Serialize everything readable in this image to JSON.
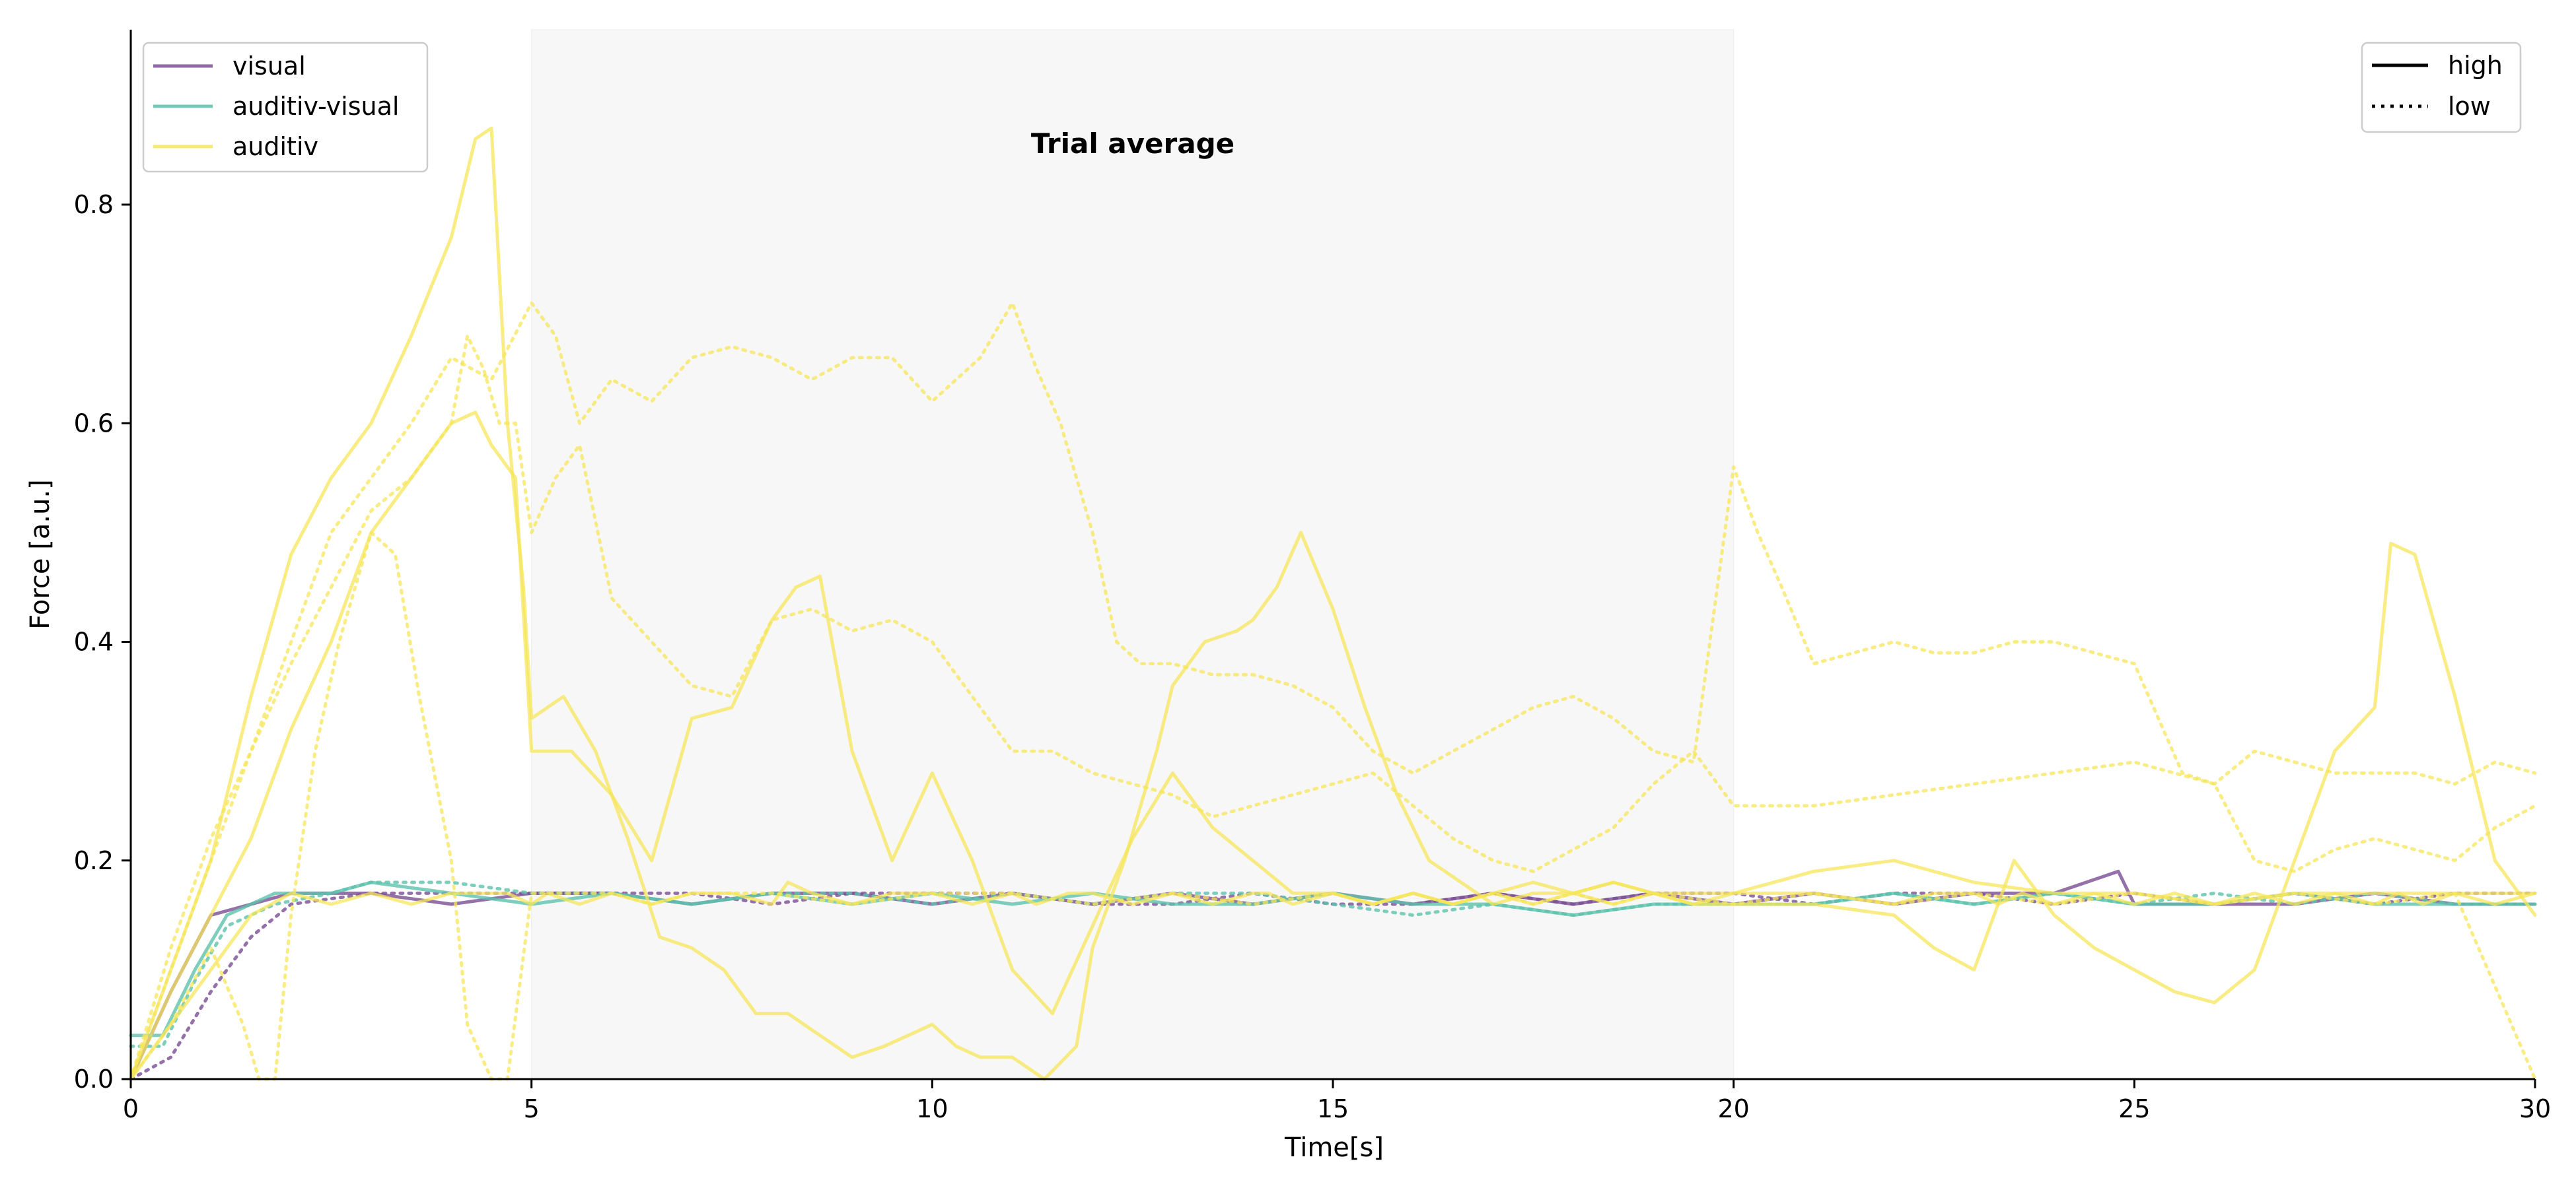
{
  "chart_data": {
    "type": "line",
    "title": "Trial average",
    "xlabel": "Time[s]",
    "ylabel": "Force [a.u.]",
    "xlim": [
      0,
      30
    ],
    "ylim": [
      0,
      0.96
    ],
    "x_ticks": [
      0,
      5,
      10,
      15,
      20,
      25,
      30
    ],
    "y_ticks": [
      0.0,
      0.2,
      0.4,
      0.6,
      0.8
    ],
    "x_tick_labels": [
      "0",
      "5",
      "10",
      "15",
      "20",
      "25",
      "30"
    ],
    "y_tick_labels": [
      "0.0",
      "0.2",
      "0.4",
      "0.6",
      "0.8"
    ],
    "grid": false,
    "shaded_region": {
      "x_start": 5,
      "x_end": 20,
      "color": "#f7f7f7"
    },
    "condition_legend": {
      "placement": "top-left",
      "entries": [
        {
          "label": "visual",
          "color": "#7b4d94"
        },
        {
          "label": "auditiv-visual",
          "color": "#5dc2ad"
        },
        {
          "label": "auditiv",
          "color": "#f5e65a"
        }
      ]
    },
    "style_legend": {
      "placement": "top-right",
      "entries": [
        {
          "label": "high",
          "dash": "solid"
        },
        {
          "label": "low",
          "dash": "dotted"
        }
      ]
    },
    "series": [
      {
        "condition": "visual",
        "style": "high",
        "color": "#7b4d94",
        "x": [
          0,
          0.5,
          1,
          1.5,
          2,
          3,
          4,
          5,
          6,
          7,
          8,
          9,
          10,
          11,
          12,
          13,
          14,
          15,
          16,
          17,
          18,
          19,
          20,
          21,
          22,
          23,
          24,
          24.8,
          25,
          25.5,
          26,
          27,
          28,
          29,
          30
        ],
        "y": [
          0,
          0.08,
          0.15,
          0.16,
          0.17,
          0.17,
          0.16,
          0.17,
          0.17,
          0.16,
          0.17,
          0.17,
          0.16,
          0.17,
          0.16,
          0.17,
          0.16,
          0.17,
          0.16,
          0.17,
          0.16,
          0.17,
          0.16,
          0.17,
          0.16,
          0.17,
          0.17,
          0.19,
          0.16,
          0.16,
          0.16,
          0.16,
          0.17,
          0.16,
          0.16
        ]
      },
      {
        "condition": "visual",
        "style": "low",
        "color": "#7b4d94",
        "x": [
          0,
          0.5,
          1,
          1.5,
          2,
          3,
          4,
          5,
          6,
          7,
          8,
          9,
          10,
          11,
          12,
          13,
          14,
          15,
          16,
          17,
          18,
          19,
          20,
          21,
          22,
          23,
          24,
          25,
          26,
          27,
          28,
          29,
          30
        ],
        "y": [
          0,
          0.02,
          0.08,
          0.13,
          0.16,
          0.17,
          0.17,
          0.17,
          0.17,
          0.17,
          0.16,
          0.17,
          0.17,
          0.17,
          0.16,
          0.16,
          0.17,
          0.16,
          0.16,
          0.17,
          0.16,
          0.17,
          0.17,
          0.16,
          0.17,
          0.17,
          0.16,
          0.17,
          0.16,
          0.17,
          0.16,
          0.17,
          0.17
        ]
      },
      {
        "condition": "auditiv-visual",
        "style": "high",
        "color": "#5dc2ad",
        "x": [
          0,
          0.4,
          0.8,
          1.2,
          1.8,
          2.5,
          3,
          4,
          5,
          6,
          7,
          8,
          9,
          10,
          11,
          12,
          13,
          14,
          15,
          16,
          17,
          18,
          19,
          20,
          21,
          22,
          23,
          24,
          25,
          26,
          27,
          28,
          29,
          30
        ],
        "y": [
          0.04,
          0.04,
          0.1,
          0.15,
          0.17,
          0.17,
          0.18,
          0.17,
          0.16,
          0.17,
          0.16,
          0.17,
          0.16,
          0.17,
          0.16,
          0.17,
          0.16,
          0.16,
          0.17,
          0.16,
          0.16,
          0.15,
          0.16,
          0.16,
          0.16,
          0.17,
          0.16,
          0.17,
          0.16,
          0.16,
          0.17,
          0.16,
          0.16,
          0.16
        ]
      },
      {
        "condition": "auditiv-visual",
        "style": "low",
        "color": "#5dc2ad",
        "x": [
          0,
          0.4,
          0.8,
          1.2,
          1.8,
          2.5,
          3,
          4,
          5,
          6,
          7,
          8,
          9,
          10,
          11,
          12,
          13,
          14,
          15,
          16,
          17,
          18,
          19,
          20,
          21,
          22,
          23,
          24,
          25,
          26,
          27,
          28,
          29,
          30
        ],
        "y": [
          0.03,
          0.03,
          0.09,
          0.14,
          0.16,
          0.17,
          0.18,
          0.18,
          0.17,
          0.17,
          0.16,
          0.17,
          0.17,
          0.16,
          0.17,
          0.16,
          0.17,
          0.17,
          0.16,
          0.15,
          0.16,
          0.15,
          0.16,
          0.16,
          0.16,
          0.17,
          0.16,
          0.17,
          0.16,
          0.17,
          0.16,
          0.17,
          0.16,
          0.16
        ]
      },
      {
        "condition": "auditiv",
        "style": "high",
        "color": "#f5e65a",
        "x": [
          0,
          0.5,
          1,
          1.5,
          2,
          2.5,
          3,
          3.5,
          4,
          4.4,
          4.7,
          5,
          5.2,
          5.6,
          6,
          6.5,
          7,
          7.5,
          8,
          8.2,
          8.5,
          9,
          9.5,
          10,
          10.5,
          11,
          11.3,
          11.7,
          12,
          12.5,
          13,
          13.5,
          14,
          14.2,
          14.5,
          15,
          15.5,
          16,
          16.5,
          17,
          17.5,
          18,
          18.5,
          19,
          19.5,
          20,
          21,
          22,
          22.5,
          23,
          23.3,
          23.6,
          24,
          24.5,
          25,
          25.5,
          26,
          26.5,
          27,
          27.5,
          28,
          28.3,
          28.6,
          29,
          29.5,
          30
        ],
        "y": [
          0,
          0.05,
          0.1,
          0.15,
          0.17,
          0.16,
          0.17,
          0.16,
          0.17,
          0.17,
          0.17,
          0.16,
          0.17,
          0.16,
          0.17,
          0.16,
          0.17,
          0.17,
          0.16,
          0.18,
          0.17,
          0.16,
          0.17,
          0.17,
          0.16,
          0.17,
          0.16,
          0.17,
          0.17,
          0.16,
          0.17,
          0.16,
          0.17,
          0.17,
          0.16,
          0.17,
          0.16,
          0.17,
          0.16,
          0.17,
          0.16,
          0.17,
          0.16,
          0.17,
          0.16,
          0.17,
          0.17,
          0.16,
          0.17,
          0.17,
          0.16,
          0.17,
          0.16,
          0.17,
          0.16,
          0.17,
          0.16,
          0.17,
          0.16,
          0.17,
          0.16,
          0.17,
          0.16,
          0.17,
          0.16,
          0.17
        ]
      },
      {
        "condition": "auditiv",
        "style": "high",
        "color": "#f5e65a",
        "x": [
          0,
          0.5,
          1,
          1.5,
          2,
          2.5,
          3,
          3.5,
          4,
          4.3,
          4.5,
          4.7,
          4.9,
          5,
          5.4,
          5.8,
          6.2,
          6.6,
          7,
          7.4,
          7.8,
          8.2,
          8.6,
          9,
          9.4,
          9.7,
          10,
          10.3,
          10.6,
          11,
          11.4,
          11.8,
          12,
          12.4,
          12.8,
          13,
          13.4,
          13.8,
          14,
          14.3,
          14.6,
          15,
          15.4,
          15.8,
          16.2,
          16.6,
          17,
          17.5,
          18,
          18.5,
          19,
          19.5,
          20,
          21,
          22,
          22.5,
          23,
          23.5,
          24,
          24.5,
          25,
          25.5,
          26,
          26.5,
          27,
          27.5,
          28,
          28.2,
          28.5,
          29,
          29.5,
          30
        ],
        "y": [
          0,
          0.1,
          0.2,
          0.35,
          0.48,
          0.55,
          0.6,
          0.68,
          0.77,
          0.86,
          0.87,
          0.6,
          0.45,
          0.33,
          0.35,
          0.3,
          0.22,
          0.13,
          0.12,
          0.1,
          0.06,
          0.06,
          0.04,
          0.02,
          0.03,
          0.04,
          0.05,
          0.03,
          0.02,
          0.02,
          0.0,
          0.03,
          0.12,
          0.2,
          0.3,
          0.36,
          0.4,
          0.41,
          0.42,
          0.45,
          0.5,
          0.43,
          0.34,
          0.26,
          0.2,
          0.18,
          0.16,
          0.17,
          0.17,
          0.18,
          0.17,
          0.16,
          0.16,
          0.16,
          0.15,
          0.12,
          0.1,
          0.2,
          0.15,
          0.12,
          0.1,
          0.08,
          0.07,
          0.1,
          0.2,
          0.3,
          0.34,
          0.49,
          0.48,
          0.35,
          0.2,
          0.15
        ]
      },
      {
        "condition": "auditiv",
        "style": "high",
        "color": "#f5e65a",
        "x": [
          0,
          0.5,
          1,
          1.5,
          2,
          2.5,
          3,
          3.5,
          4,
          4.3,
          4.5,
          4.8,
          5,
          5.5,
          6,
          6.5,
          7,
          7.5,
          8,
          8.3,
          8.6,
          9,
          9.5,
          10,
          10.5,
          11,
          11.5,
          12,
          12.5,
          13,
          13.5,
          14,
          14.5,
          15,
          15.5,
          16,
          16.5,
          17,
          17.5,
          18,
          18.5,
          19,
          20,
          21,
          22,
          23,
          24,
          25,
          26,
          27,
          28,
          29,
          30
        ],
        "y": [
          0,
          0.08,
          0.15,
          0.22,
          0.32,
          0.4,
          0.5,
          0.55,
          0.6,
          0.61,
          0.58,
          0.55,
          0.3,
          0.3,
          0.26,
          0.2,
          0.33,
          0.34,
          0.42,
          0.45,
          0.46,
          0.3,
          0.2,
          0.28,
          0.2,
          0.1,
          0.06,
          0.14,
          0.22,
          0.28,
          0.23,
          0.2,
          0.17,
          0.17,
          0.16,
          0.17,
          0.16,
          0.17,
          0.18,
          0.17,
          0.18,
          0.17,
          0.17,
          0.19,
          0.2,
          0.18,
          0.17,
          0.17,
          0.16,
          0.17,
          0.17,
          0.17,
          0.17
        ]
      },
      {
        "condition": "auditiv",
        "style": "low",
        "color": "#f5e65a",
        "x": [
          0,
          0.5,
          1,
          1.5,
          2,
          2.5,
          3,
          3.5,
          4,
          4.5,
          5,
          5.3,
          5.6,
          6,
          6.5,
          7,
          7.5,
          8,
          8.5,
          9,
          9.5,
          10,
          10.3,
          10.6,
          11,
          11.3,
          11.6,
          12,
          12.3,
          12.6,
          13,
          13.5,
          14,
          14.5,
          15,
          15.5,
          16,
          16.5,
          17,
          17.5,
          18,
          18.5,
          19,
          19.5,
          20,
          20.3,
          20.6,
          21,
          21.5,
          22,
          22.5,
          23,
          23.5,
          24,
          24.5,
          25,
          25.3,
          25.6,
          26,
          26.5,
          27,
          27.5,
          28,
          28.5,
          29,
          29.5,
          30
        ],
        "y": [
          0,
          0.1,
          0.2,
          0.3,
          0.4,
          0.5,
          0.55,
          0.6,
          0.66,
          0.64,
          0.71,
          0.68,
          0.6,
          0.64,
          0.62,
          0.66,
          0.67,
          0.66,
          0.64,
          0.66,
          0.66,
          0.62,
          0.64,
          0.66,
          0.71,
          0.65,
          0.6,
          0.5,
          0.4,
          0.38,
          0.38,
          0.37,
          0.37,
          0.36,
          0.34,
          0.3,
          0.28,
          0.3,
          0.32,
          0.34,
          0.35,
          0.33,
          0.3,
          0.29,
          0.56,
          0.5,
          0.45,
          0.38,
          0.39,
          0.4,
          0.39,
          0.39,
          0.4,
          0.4,
          0.39,
          0.38,
          0.33,
          0.28,
          0.27,
          0.3,
          0.29,
          0.28,
          0.28,
          0.28,
          0.27,
          0.29,
          0.28
        ]
      },
      {
        "condition": "auditiv",
        "style": "low",
        "color": "#f5e65a",
        "x": [
          0,
          0.5,
          1,
          1.5,
          2,
          2.5,
          3,
          3.5,
          4,
          4.2,
          4.4,
          4.6,
          4.8,
          5,
          5.3,
          5.6,
          6,
          6.5,
          7,
          7.5,
          8,
          8.5,
          9,
          9.5,
          10,
          10.5,
          11,
          11.5,
          12,
          12.5,
          13,
          13.5,
          14,
          14.5,
          15,
          15.5,
          16,
          16.5,
          17,
          17.5,
          18,
          18.5,
          19,
          19.5,
          20,
          21,
          22,
          23,
          24,
          25,
          26,
          26.5,
          27,
          27.5,
          28,
          28.5,
          29,
          29.5,
          30
        ],
        "y": [
          0,
          0.12,
          0.22,
          0.3,
          0.38,
          0.45,
          0.52,
          0.55,
          0.6,
          0.68,
          0.65,
          0.6,
          0.6,
          0.5,
          0.55,
          0.58,
          0.44,
          0.4,
          0.36,
          0.35,
          0.42,
          0.43,
          0.41,
          0.42,
          0.4,
          0.35,
          0.3,
          0.3,
          0.28,
          0.27,
          0.26,
          0.24,
          0.25,
          0.26,
          0.27,
          0.28,
          0.25,
          0.22,
          0.2,
          0.19,
          0.21,
          0.23,
          0.27,
          0.3,
          0.25,
          0.25,
          0.26,
          0.27,
          0.28,
          0.29,
          0.27,
          0.2,
          0.19,
          0.21,
          0.22,
          0.21,
          0.2,
          0.23,
          0.25
        ]
      },
      {
        "condition": "auditiv",
        "style": "low",
        "color": "#f5e65a",
        "x": [
          0,
          0.5,
          1,
          1.4,
          1.6,
          1.8,
          2,
          2.3,
          2.6,
          3,
          3.3,
          3.6,
          4,
          4.2,
          4.5,
          4.7,
          5,
          5.5,
          6,
          6.5,
          7,
          8,
          9,
          10,
          11,
          12,
          13,
          14,
          15,
          15.5,
          16,
          16.5,
          17,
          17.5,
          18,
          18.5,
          19,
          20,
          21,
          22,
          23,
          24,
          25,
          26,
          27,
          28,
          29,
          30
        ],
        "y": [
          0,
          0.05,
          0.12,
          0.05,
          0.0,
          0.0,
          0.15,
          0.3,
          0.4,
          0.5,
          0.48,
          0.35,
          0.2,
          0.05,
          0.0,
          0.0,
          0.17,
          0.17,
          0.17,
          0.16,
          0.17,
          0.17,
          0.16,
          0.17,
          0.17,
          0.16,
          0.17,
          0.16,
          0.17,
          0.16,
          0.17,
          0.16,
          0.17,
          0.16,
          0.17,
          0.16,
          0.17,
          0.16,
          0.17,
          0.16,
          0.17,
          0.16,
          0.17,
          0.16,
          0.17,
          0.16,
          0.17,
          0.0
        ]
      }
    ]
  }
}
